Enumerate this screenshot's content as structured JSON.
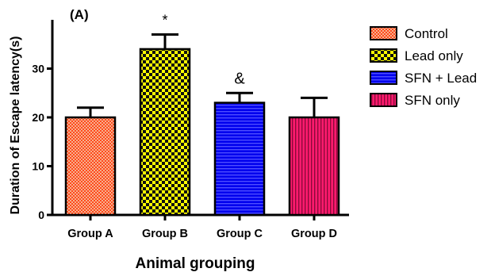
{
  "chart_data": {
    "type": "bar",
    "panel_label": "(A)",
    "title": "",
    "xlabel": "Animal grouping",
    "ylabel": "Duration of Escape latency(s)",
    "ylim": [
      0,
      40
    ],
    "yticks": [
      0,
      10,
      20,
      30
    ],
    "categories": [
      "Group A",
      "Group B",
      "Group C",
      "Group D"
    ],
    "values": [
      20,
      34,
      23,
      20
    ],
    "errors": [
      2,
      3,
      2,
      4
    ],
    "annotations": [
      "",
      "*",
      "&",
      ""
    ],
    "legend": {
      "position": "right",
      "entries": [
        "Control",
        "Lead only",
        "SFN + Lead",
        "SFN only"
      ]
    },
    "colors": {
      "fills": [
        "#ff4a1c",
        "#ffff00",
        "#0000ee",
        "#ff1a6e"
      ],
      "patterns": [
        "#f7b08f",
        "#111111",
        "#4e4eff",
        "#8a0a3a"
      ],
      "axis": "#000000"
    }
  }
}
